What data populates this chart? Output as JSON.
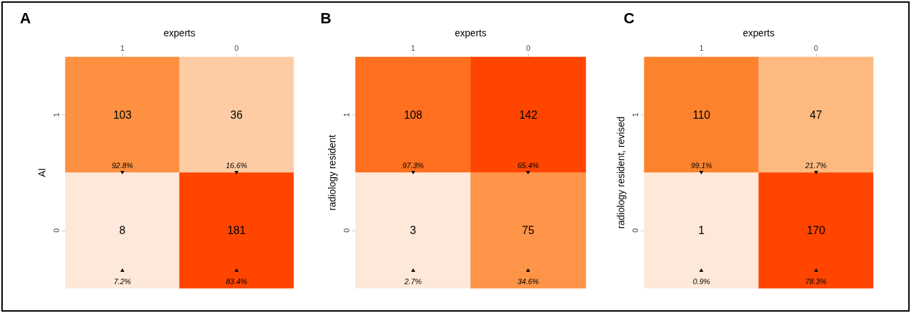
{
  "chart_data": [
    {
      "type": "heatmap",
      "title": "A",
      "xlabel": "experts",
      "ylabel": "AI",
      "categories": [
        "1",
        "0"
      ],
      "y_categories": [
        "1",
        "0"
      ],
      "cells": [
        [
          103,
          36
        ],
        [
          8,
          181
        ]
      ],
      "data_labels": true,
      "annotations": [
        "92.8%",
        "16.6%",
        "7.2%",
        "83.4%"
      ]
    },
    {
      "type": "heatmap",
      "title": "B",
      "xlabel": "experts",
      "ylabel": "radiology resident",
      "categories": [
        "1",
        "0"
      ],
      "y_categories": [
        "1",
        "0"
      ],
      "cells": [
        [
          108,
          142
        ],
        [
          3,
          75
        ]
      ],
      "data_labels": true,
      "annotations": [
        "97.3%",
        "65.4%",
        "2.7%",
        "34.6%"
      ]
    },
    {
      "type": "heatmap",
      "title": "C",
      "xlabel": "experts",
      "ylabel": "radiology resident, revised",
      "categories": [
        "1",
        "0"
      ],
      "y_categories": [
        "1",
        "0"
      ],
      "cells": [
        [
          110,
          47
        ],
        [
          1,
          170
        ]
      ],
      "data_labels": true,
      "annotations": [
        "99.1%",
        "21.7%",
        "0.9%",
        "78.3%"
      ]
    }
  ]
}
